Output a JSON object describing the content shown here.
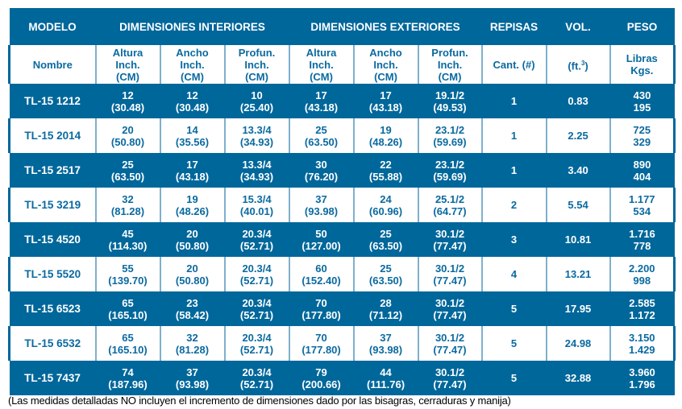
{
  "colors": {
    "header_bg": "#00679b",
    "accent_text": "#0a6aa0",
    "row_alt": "#ffffff"
  },
  "header": {
    "modelo": "MODELO",
    "dim_int": "DIMENSIONES INTERIORES",
    "dim_ext": "DIMENSIONES EXTERIORES",
    "repisas": "REPISAS",
    "vol": "VOL.",
    "peso": "PESO"
  },
  "subheader": {
    "nombre": "Nombre",
    "altura": [
      "Altura",
      "Inch.",
      "(CM)"
    ],
    "ancho": [
      "Ancho",
      "Inch.",
      "(CM)"
    ],
    "profun": [
      "Profun.",
      "Inch.",
      "(CM)"
    ],
    "cant": "Cant. (#)",
    "vol_unit": "(ft.",
    "vol_exp": "3",
    "vol_close": ")",
    "peso": [
      "Libras",
      "Kgs."
    ]
  },
  "rows": [
    {
      "model": "TL-15 1212",
      "int_h": [
        "12",
        "(30.48)"
      ],
      "int_w": [
        "12",
        "(30.48)"
      ],
      "int_d": [
        "10",
        "(25.40)"
      ],
      "ext_h": [
        "17",
        "(43.18)"
      ],
      "ext_w": [
        "17",
        "(43.18)"
      ],
      "ext_d": [
        "19.1/2",
        "(49.53)"
      ],
      "shelves": "1",
      "vol": "0.83",
      "weight": [
        "430",
        "195"
      ]
    },
    {
      "model": "TL-15 2014",
      "int_h": [
        "20",
        "(50.80)"
      ],
      "int_w": [
        "14",
        "(35.56)"
      ],
      "int_d": [
        "13.3/4",
        "(34.93)"
      ],
      "ext_h": [
        "25",
        "(63.50)"
      ],
      "ext_w": [
        "19",
        "(48.26)"
      ],
      "ext_d": [
        "23.1/2",
        "(59.69)"
      ],
      "shelves": "1",
      "vol": "2.25",
      "weight": [
        "725",
        "329"
      ]
    },
    {
      "model": "TL-15 2517",
      "int_h": [
        "25",
        "(63.50)"
      ],
      "int_w": [
        "17",
        "(43.18)"
      ],
      "int_d": [
        "13.3/4",
        "(34.93)"
      ],
      "ext_h": [
        "30",
        "(76.20)"
      ],
      "ext_w": [
        "22",
        "(55.88)"
      ],
      "ext_d": [
        "23.1/2",
        "(59.69)"
      ],
      "shelves": "1",
      "vol": "3.40",
      "weight": [
        "890",
        "404"
      ]
    },
    {
      "model": "TL-15 3219",
      "int_h": [
        "32",
        "(81.28)"
      ],
      "int_w": [
        "19",
        "(48.26)"
      ],
      "int_d": [
        "15.3/4",
        "(40.01)"
      ],
      "ext_h": [
        "37",
        "(93.98)"
      ],
      "ext_w": [
        "24",
        "(60.96)"
      ],
      "ext_d": [
        "25.1/2",
        "(64.77)"
      ],
      "shelves": "2",
      "vol": "5.54",
      "weight": [
        "1.177",
        "534"
      ]
    },
    {
      "model": "TL-15 4520",
      "int_h": [
        "45",
        "(114.30)"
      ],
      "int_w": [
        "20",
        "(50.80)"
      ],
      "int_d": [
        "20.3/4",
        "(52.71)"
      ],
      "ext_h": [
        "50",
        "(127.00)"
      ],
      "ext_w": [
        "25",
        "(63.50)"
      ],
      "ext_d": [
        "30.1/2",
        "(77.47)"
      ],
      "shelves": "3",
      "vol": "10.81",
      "weight": [
        "1.716",
        "778"
      ]
    },
    {
      "model": "TL-15 5520",
      "int_h": [
        "55",
        "(139.70)"
      ],
      "int_w": [
        "20",
        "(50.80)"
      ],
      "int_d": [
        "20.3/4",
        "(52.71)"
      ],
      "ext_h": [
        "60",
        "(152.40)"
      ],
      "ext_w": [
        "25",
        "(63.50)"
      ],
      "ext_d": [
        "30.1/2",
        "(77.47)"
      ],
      "shelves": "4",
      "vol": "13.21",
      "weight": [
        "2.200",
        "998"
      ]
    },
    {
      "model": "TL-15 6523",
      "int_h": [
        "65",
        "(165.10)"
      ],
      "int_w": [
        "23",
        "(58.42)"
      ],
      "int_d": [
        "20.3/4",
        "(52.71)"
      ],
      "ext_h": [
        "70",
        "(177.80)"
      ],
      "ext_w": [
        "28",
        "(71.12)"
      ],
      "ext_d": [
        "30.1/2",
        "(77.47)"
      ],
      "shelves": "5",
      "vol": "17.95",
      "weight": [
        "2.585",
        "1.172"
      ]
    },
    {
      "model": "TL-15 6532",
      "int_h": [
        "65",
        "(165.10)"
      ],
      "int_w": [
        "32",
        "(81.28)"
      ],
      "int_d": [
        "20.3/4",
        "(52.71)"
      ],
      "ext_h": [
        "70",
        "(177.80)"
      ],
      "ext_w": [
        "37",
        "(93.98)"
      ],
      "ext_d": [
        "30.1/2",
        "(77.47)"
      ],
      "shelves": "5",
      "vol": "24.98",
      "weight": [
        "3.150",
        "1.429"
      ]
    },
    {
      "model": "TL-15 7437",
      "int_h": [
        "74",
        "(187.96)"
      ],
      "int_w": [
        "37",
        "(93.98)"
      ],
      "int_d": [
        "20.3/4",
        "(52.71)"
      ],
      "ext_h": [
        "79",
        "(200.66)"
      ],
      "ext_w": [
        "44",
        "(111.76)"
      ],
      "ext_d": [
        "30.1/2",
        "(77.47)"
      ],
      "shelves": "5",
      "vol": "32.88",
      "weight": [
        "3.960",
        "1.796"
      ]
    }
  ],
  "footnote": "(Las medidas detalladas NO incluyen el incremento de dimensiones dado por las bisagras, cerraduras y manija)"
}
